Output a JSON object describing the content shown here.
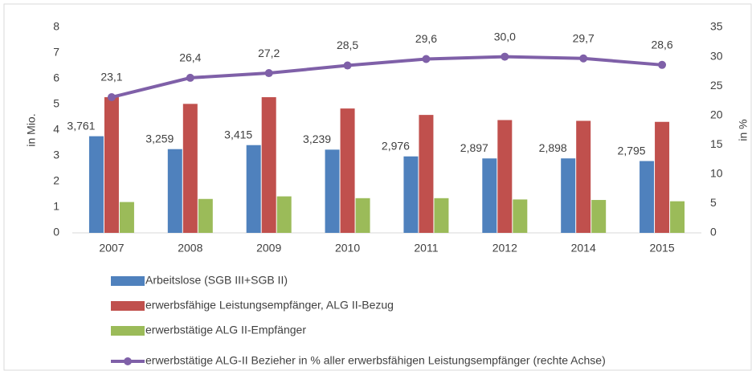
{
  "chart_data": {
    "type": "bar_line",
    "categories": [
      "2007",
      "2008",
      "2009",
      "2010",
      "2011",
      "2012",
      "2014",
      "2015"
    ],
    "ylabel": "in Mio.",
    "y2label": "in %",
    "ylim": [
      0,
      8
    ],
    "yticks": [
      0,
      1,
      2,
      3,
      4,
      5,
      6,
      7,
      8
    ],
    "y2lim": [
      0,
      35
    ],
    "y2ticks": [
      0,
      5,
      10,
      15,
      20,
      25,
      30,
      35
    ],
    "grid": false,
    "legend": "bottom",
    "series": [
      {
        "name": "Arbeitslose (SGB III+SGB II)",
        "type": "bar",
        "color": "#4f81bd",
        "values": [
          3.761,
          3.259,
          3.415,
          3.239,
          2.976,
          2.897,
          2.898,
          2.795
        ],
        "value_labels": [
          "3,761",
          "3,259",
          "3,415",
          "3,239",
          "2,976",
          "2,897",
          "2,898",
          "2,795"
        ]
      },
      {
        "name": "erwerbsfähige Leistungsempfänger, ALG II-Bezug",
        "type": "bar",
        "color": "#c0504d",
        "values": [
          5.28,
          5.02,
          5.28,
          4.84,
          4.59,
          4.39,
          4.36,
          4.32
        ]
      },
      {
        "name": "erwerbstätige ALG II-Empfänger",
        "type": "bar",
        "color": "#9bbb59",
        "values": [
          1.2,
          1.32,
          1.42,
          1.35,
          1.35,
          1.3,
          1.28,
          1.23
        ]
      },
      {
        "name": "erwerbstätige ALG-II Bezieher in % aller erwerbsfähigen Leistungsempfänger (rechte Achse)",
        "type": "line",
        "axis": "y2",
        "color": "#7f60a8",
        "values": [
          23.1,
          26.4,
          27.2,
          28.5,
          29.6,
          30.0,
          29.7,
          28.6
        ],
        "value_labels": [
          "23,1",
          "26,4",
          "27,2",
          "28,5",
          "29,6",
          "30,0",
          "29,7",
          "28,6"
        ]
      }
    ]
  }
}
